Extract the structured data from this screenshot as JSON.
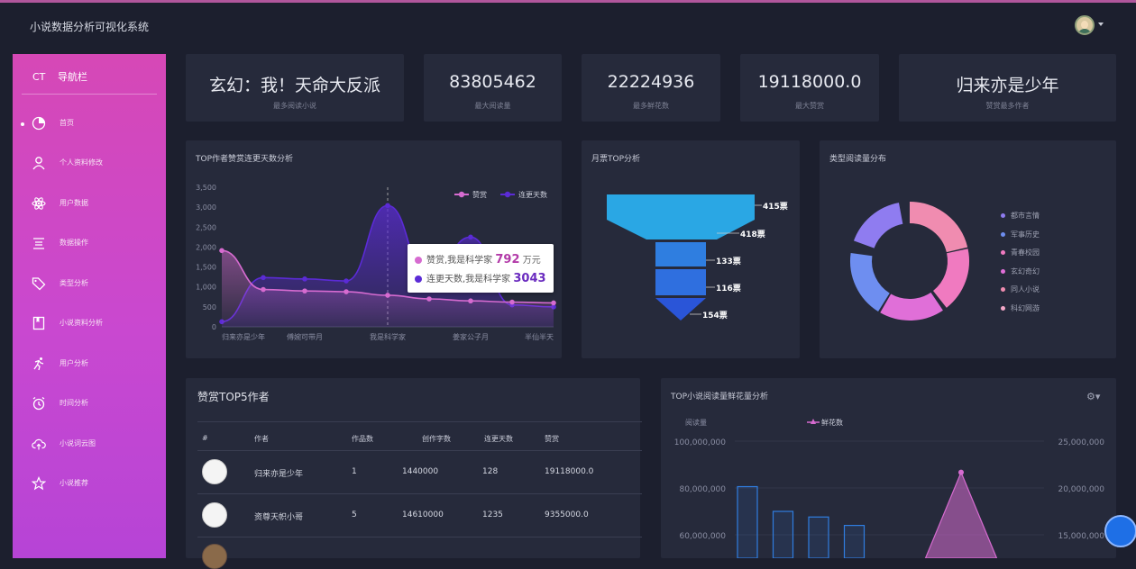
{
  "app": {
    "title": "小说数据分析可视化系统"
  },
  "sidebar": {
    "brand": "CT",
    "brand_label": "导航栏",
    "items": [
      {
        "label": "首页",
        "icon": "pie-chart-icon",
        "active": true
      },
      {
        "label": "个人资料修改",
        "icon": "user-icon"
      },
      {
        "label": "用户数据",
        "icon": "atom-icon"
      },
      {
        "label": "数据操作",
        "icon": "list-icon"
      },
      {
        "label": "类型分析",
        "icon": "tag-icon"
      },
      {
        "label": "小说资料分析",
        "icon": "book-icon"
      },
      {
        "label": "用户分析",
        "icon": "runner-icon"
      },
      {
        "label": "时间分析",
        "icon": "alarm-clock-icon"
      },
      {
        "label": "小说词云图",
        "icon": "cloud-upload-icon"
      },
      {
        "label": "小说推荐",
        "icon": "star-icon"
      }
    ]
  },
  "stats": [
    {
      "value": "玄幻：我！天命大反派",
      "label": "最多阅读小说"
    },
    {
      "value": "83805462",
      "label": "最大阅读量"
    },
    {
      "value": "22224936",
      "label": "最多鲜花数"
    },
    {
      "value": "19118000.0",
      "label": "最大赞赏"
    },
    {
      "value": "归来亦是少年",
      "label": "赞赏最多作者"
    }
  ],
  "line_chart": {
    "title": "TOP作者赞赏连更天数分析",
    "legend": [
      {
        "name": "赞赏",
        "color": "#d66bd0"
      },
      {
        "name": "连更天数",
        "color": "#5b2bd6"
      }
    ],
    "tooltip": {
      "row1_label": "赞赏,我是科学家",
      "row1_value": "792",
      "row1_unit": "万元",
      "row2_label": "连更天数,我是科学家",
      "row2_value": "3043"
    }
  },
  "funnel_chart": {
    "title": "月票TOP分析",
    "labels": [
      "415票",
      "418票",
      "133票",
      "116票",
      "154票"
    ]
  },
  "donut_chart": {
    "title": "类型阅读量分布",
    "legend": [
      {
        "name": "都市言情",
        "color": "#8f7cf0"
      },
      {
        "name": "军事历史",
        "color": "#6e8ef0"
      },
      {
        "name": "青春校园",
        "color": "#f07ac0"
      },
      {
        "name": "玄幻奇幻",
        "color": "#e06fd8"
      },
      {
        "name": "同人小说",
        "color": "#f08cb0"
      },
      {
        "name": "科幻网游",
        "color": "#f4a8c8"
      }
    ]
  },
  "table": {
    "title": "赞赏TOP5作者",
    "headers": [
      "#",
      "作者",
      "作品数",
      "创作字数",
      "连更天数",
      "赞赏"
    ],
    "rows": [
      {
        "author": "归来亦是少年",
        "works": "1",
        "words": "1440000",
        "days": "128",
        "reward": "19118000.0"
      },
      {
        "author": "资尊天帜小哥",
        "works": "5",
        "words": "14610000",
        "days": "1235",
        "reward": "9355000.0"
      }
    ]
  },
  "bar_chart": {
    "title": "TOP小说阅读量鲜花量分析",
    "legend": [
      {
        "name": "阅读量",
        "color": "#2f7de0"
      },
      {
        "name": "鲜花数",
        "color": "#d66bd0"
      }
    ],
    "left_axis": [
      "100,000,000",
      "80,000,000",
      "60,000,000"
    ],
    "right_axis": [
      "25,000,000",
      "20,000,000",
      "15,000,000"
    ]
  },
  "chart_data": [
    {
      "type": "line",
      "title": "TOP作者赞赏连更天数分析",
      "categories": [
        "归来亦是少年",
        "",
        "傅婉可带月",
        "",
        "我是科学家",
        "",
        "姜家公子月",
        "",
        "半仙半天"
      ],
      "y_ticks": [
        "0",
        "500",
        "1,000",
        "1,500",
        "2,000",
        "2,500",
        "3,000",
        "3,500"
      ],
      "ylim": [
        0,
        3500
      ],
      "series": [
        {
          "name": "赞赏",
          "values": [
            1912,
            936,
            900,
            880,
            792,
            700,
            650,
            620,
            600
          ]
        },
        {
          "name": "连更天数",
          "values": [
            128,
            1235,
            1200,
            1150,
            3043,
            1200,
            2250,
            550,
            500
          ]
        }
      ]
    },
    {
      "type": "bar",
      "title": "TOP小说阅读量鲜花量分析",
      "series": [
        {
          "name": "阅读量",
          "values": [
            83805462,
            75000000,
            73000000,
            70000000,
            56000000,
            56000000,
            56000000,
            56000000,
            56000000
          ]
        },
        {
          "name": "鲜花数",
          "values": [
            14000000,
            14000000,
            14000000,
            14000000,
            14000000,
            14000000,
            22224936,
            14000000,
            14000000
          ]
        }
      ],
      "ylim": [
        50000000,
        100000000
      ],
      "y2lim": [
        12500000,
        25000000
      ]
    }
  ]
}
